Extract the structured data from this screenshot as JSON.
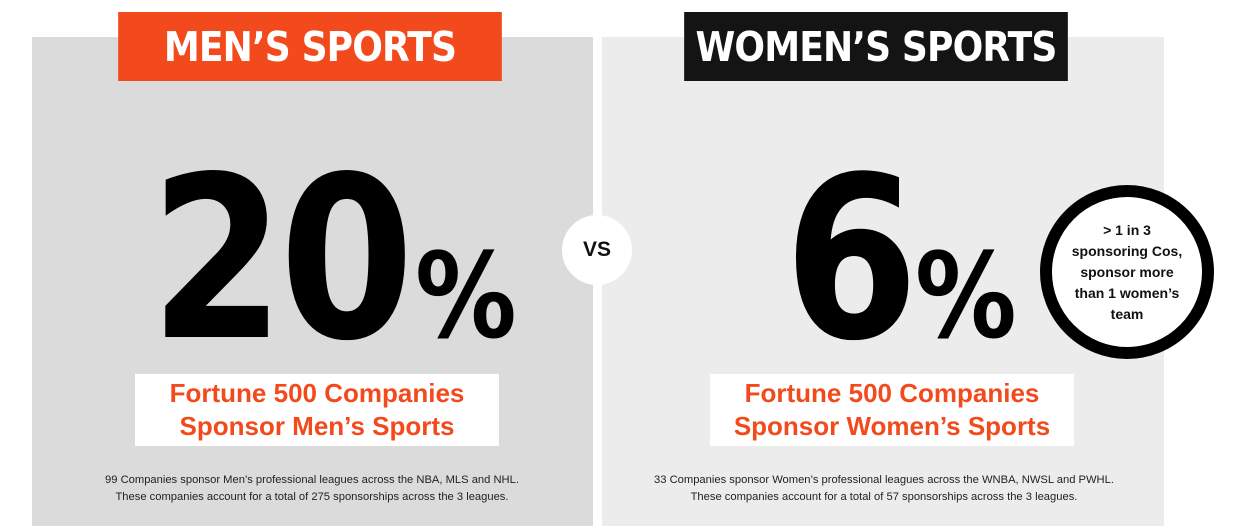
{
  "chart_data": [
    {
      "type": "table",
      "title": "MEN’S SPORTS",
      "value": 20,
      "unit": "%",
      "label_lines": [
        "Fortune 500 Companies",
        "Sponsor Men’s Sports"
      ],
      "note_lines": [
        "99 Companies sponsor Men’s professional leagues across the NBA, MLS and NHL.",
        "These companies account for a total of 275 sponsorships across the 3 leagues."
      ]
    },
    {
      "type": "table",
      "title": "WOMEN’S SPORTS",
      "value": 6,
      "unit": "%",
      "label_lines": [
        "Fortune 500 Companies",
        "Sponsor Women’s Sports"
      ],
      "note_lines": [
        "33 Companies sponsor Women’s professional leagues across the WNBA, NWSL and PWHL.",
        "These companies account for a total of 57 sponsorships across the 3 leagues."
      ],
      "callout_lines": [
        "> 1 in 3",
        "sponsoring Cos,",
        "sponsor more",
        "than 1 women’s",
        "team"
      ]
    }
  ],
  "vs_label": "VS",
  "colors": {
    "accent": "#f24a1c",
    "dark": "#141414",
    "men_panel": "#dbdbdb",
    "women_panel": "#ececec"
  }
}
